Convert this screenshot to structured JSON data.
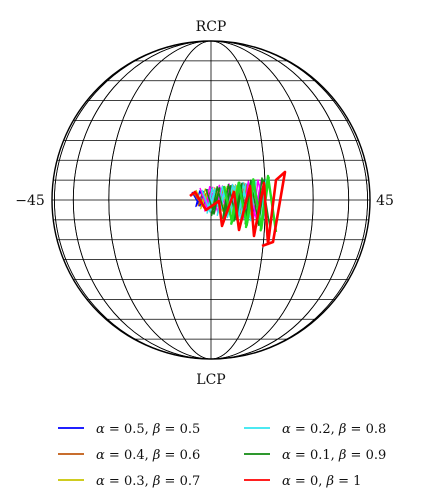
{
  "figure": {
    "labels": {
      "top": "RCP",
      "bottom": "LCP",
      "left": "−45",
      "right": "45"
    }
  },
  "legend": {
    "entries": [
      {
        "alpha": "0.5",
        "beta": "0.5",
        "color": "#0000ff"
      },
      {
        "alpha": "0.4",
        "beta": "0.6",
        "color": "#c05a10"
      },
      {
        "alpha": "0.3",
        "beta": "0.7",
        "color": "#c8c400"
      },
      {
        "alpha": "0.2",
        "beta": "0.8",
        "color": "#33e6f0"
      },
      {
        "alpha": "0.1",
        "beta": "0.9",
        "color": "#118a11"
      },
      {
        "alpha": "0",
        "beta": "1",
        "color": "#ff0000"
      }
    ]
  },
  "trace_colors": {
    "blue": "#0000ff",
    "brown": "#c05a10",
    "yellow": "#c8c400",
    "cyan": "#33e6f0",
    "green": "#118a11",
    "magenta": "#ff00ff",
    "lime": "#22dd22",
    "red": "#ff0000"
  }
}
